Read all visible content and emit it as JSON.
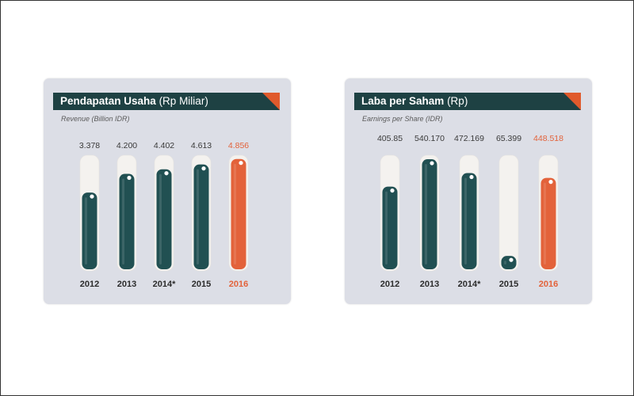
{
  "chart_data": [
    {
      "type": "bar",
      "title_bold": "Pendapatan Usaha",
      "title_unit": "(Rp Miliar)",
      "subtitle": "Revenue (Billion IDR)",
      "categories": [
        "2012",
        "2013",
        "2014*",
        "2015",
        "2016"
      ],
      "value_labels": [
        "3.378",
        "4.200",
        "4.402",
        "4.613",
        "4.856"
      ],
      "values": [
        3378,
        4200,
        4402,
        4613,
        4856
      ],
      "ylim": [
        0,
        4950
      ],
      "highlight_index": 4
    },
    {
      "type": "bar",
      "title_bold": "Laba per Saham",
      "title_unit": "(Rp)",
      "subtitle": "Earnings  per Share (IDR)",
      "categories": [
        "2012",
        "2013",
        "2014*",
        "2015",
        "2016"
      ],
      "value_labels": [
        "405.85",
        "540.170",
        "472.169",
        "65.399",
        "448.518"
      ],
      "values": [
        405.85,
        540.17,
        472.169,
        65.399,
        448.518
      ],
      "ylim": [
        0,
        552
      ],
      "highlight_index": 4
    }
  ],
  "colors": {
    "bar": "#215052",
    "bar_highlight": "#e3623a",
    "track": "#f4f2ef",
    "year_text": "#2b2b2b",
    "value_text": "#3a3a3a",
    "highlight_text": "#e3623a"
  }
}
